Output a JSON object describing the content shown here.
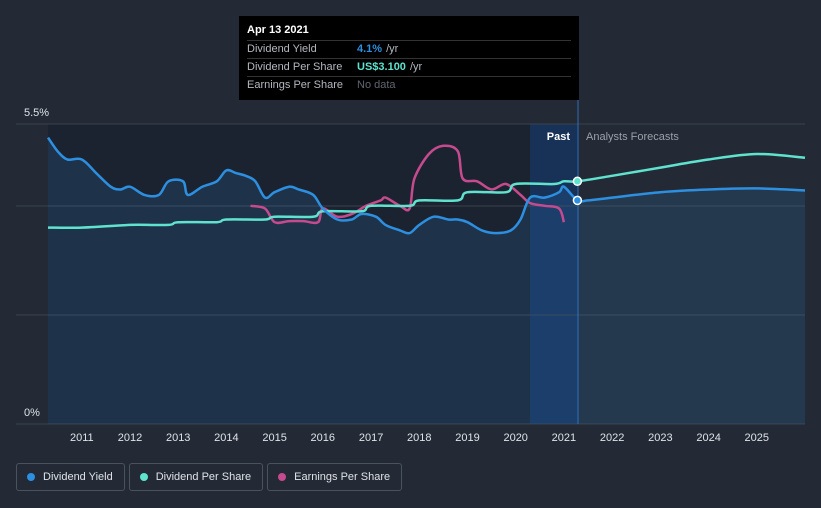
{
  "chart_data": {
    "type": "line",
    "y_axis": {
      "min_label": "0%",
      "max_label": "5.5%"
    },
    "x_ticks": [
      "2011",
      "2012",
      "2013",
      "2014",
      "2015",
      "2016",
      "2017",
      "2018",
      "2019",
      "2020",
      "2021",
      "2022",
      "2023",
      "2024",
      "2025"
    ],
    "region_labels": {
      "past": "Past",
      "forecast": "Analysts Forecasts"
    },
    "series": [
      {
        "name": "Dividend Yield",
        "color": "#2d8fe0",
        "points": [
          [
            2010.3,
            5.25
          ],
          [
            2010.5,
            5.0
          ],
          [
            2010.7,
            4.85
          ],
          [
            2011.0,
            4.85
          ],
          [
            2011.3,
            4.6
          ],
          [
            2011.6,
            4.35
          ],
          [
            2011.8,
            4.3
          ],
          [
            2012.0,
            4.35
          ],
          [
            2012.3,
            4.2
          ],
          [
            2012.6,
            4.2
          ],
          [
            2012.8,
            4.45
          ],
          [
            2013.1,
            4.45
          ],
          [
            2013.2,
            4.2
          ],
          [
            2013.5,
            4.35
          ],
          [
            2013.8,
            4.45
          ],
          [
            2014.0,
            4.65
          ],
          [
            2014.2,
            4.6
          ],
          [
            2014.4,
            4.55
          ],
          [
            2014.6,
            4.45
          ],
          [
            2014.8,
            4.15
          ],
          [
            2015.0,
            4.25
          ],
          [
            2015.3,
            4.35
          ],
          [
            2015.5,
            4.3
          ],
          [
            2015.8,
            4.2
          ],
          [
            2016.0,
            3.95
          ],
          [
            2016.3,
            3.75
          ],
          [
            2016.6,
            3.75
          ],
          [
            2016.8,
            3.85
          ],
          [
            2017.1,
            3.8
          ],
          [
            2017.3,
            3.65
          ],
          [
            2017.6,
            3.55
          ],
          [
            2017.8,
            3.5
          ],
          [
            2018.0,
            3.65
          ],
          [
            2018.3,
            3.8
          ],
          [
            2018.6,
            3.75
          ],
          [
            2018.8,
            3.75
          ],
          [
            2019.0,
            3.7
          ],
          [
            2019.3,
            3.55
          ],
          [
            2019.6,
            3.5
          ],
          [
            2019.9,
            3.55
          ],
          [
            2020.1,
            3.75
          ],
          [
            2020.3,
            4.15
          ],
          [
            2020.6,
            4.15
          ],
          [
            2020.9,
            4.25
          ],
          [
            2021.0,
            4.35
          ],
          [
            2021.28,
            4.1
          ],
          [
            2021.5,
            4.1
          ],
          [
            2022.0,
            4.15
          ],
          [
            2023.0,
            4.25
          ],
          [
            2024.0,
            4.3
          ],
          [
            2025.0,
            4.32
          ],
          [
            2026.0,
            4.28
          ]
        ]
      },
      {
        "name": "Dividend Per Share",
        "color": "#5fe3cf",
        "points": [
          [
            2010.3,
            3.6
          ],
          [
            2011.0,
            3.6
          ],
          [
            2012.0,
            3.65
          ],
          [
            2012.8,
            3.65
          ],
          [
            2013.0,
            3.7
          ],
          [
            2013.8,
            3.7
          ],
          [
            2014.0,
            3.75
          ],
          [
            2014.8,
            3.75
          ],
          [
            2015.0,
            3.8
          ],
          [
            2015.8,
            3.8
          ],
          [
            2016.0,
            3.9
          ],
          [
            2016.8,
            3.9
          ],
          [
            2017.0,
            4.0
          ],
          [
            2017.8,
            4.0
          ],
          [
            2018.0,
            4.1
          ],
          [
            2018.8,
            4.1
          ],
          [
            2019.0,
            4.25
          ],
          [
            2019.8,
            4.25
          ],
          [
            2020.0,
            4.4
          ],
          [
            2020.8,
            4.4
          ],
          [
            2021.0,
            4.45
          ],
          [
            2021.28,
            4.45
          ],
          [
            2022.0,
            4.55
          ],
          [
            2023.0,
            4.7
          ],
          [
            2024.0,
            4.85
          ],
          [
            2025.0,
            4.95
          ],
          [
            2026.0,
            4.88
          ]
        ]
      },
      {
        "name": "Earnings Per Share",
        "color": "#c64a8e",
        "points": [
          [
            2014.5,
            4.0
          ],
          [
            2014.8,
            3.95
          ],
          [
            2015.0,
            3.7
          ],
          [
            2015.3,
            3.72
          ],
          [
            2015.6,
            3.72
          ],
          [
            2015.9,
            3.7
          ],
          [
            2016.0,
            3.95
          ],
          [
            2016.3,
            3.8
          ],
          [
            2016.6,
            3.85
          ],
          [
            2016.9,
            4.0
          ],
          [
            2017.2,
            4.1
          ],
          [
            2017.3,
            4.15
          ],
          [
            2017.6,
            4.0
          ],
          [
            2017.8,
            3.95
          ],
          [
            2017.9,
            4.5
          ],
          [
            2018.2,
            4.95
          ],
          [
            2018.5,
            5.1
          ],
          [
            2018.8,
            5.0
          ],
          [
            2018.9,
            4.5
          ],
          [
            2019.2,
            4.45
          ],
          [
            2019.5,
            4.3
          ],
          [
            2019.8,
            4.4
          ],
          [
            2020.1,
            4.2
          ],
          [
            2020.3,
            4.05
          ],
          [
            2020.6,
            4.0
          ],
          [
            2020.9,
            3.95
          ],
          [
            2021.0,
            3.7
          ]
        ]
      }
    ],
    "markers": [
      {
        "series": "Dividend Per Share",
        "x": 2021.28,
        "y": 4.45
      },
      {
        "series": "Dividend Yield",
        "x": 2021.28,
        "y": 4.1
      }
    ],
    "grid": true,
    "legend_position": "bottom-left"
  },
  "tooltip": {
    "date": "Apr 13 2021",
    "rows": [
      {
        "name": "Dividend Yield",
        "value": "4.1%",
        "unit": "/yr",
        "color": "#2d8fe0"
      },
      {
        "name": "Dividend Per Share",
        "value": "US$3.100",
        "unit": "/yr",
        "color": "#5fe3cf"
      },
      {
        "name": "Earnings Per Share",
        "value": "",
        "unit": "",
        "nodata": "No data"
      }
    ]
  },
  "legend": [
    {
      "label": "Dividend Yield",
      "color": "#2d8fe0"
    },
    {
      "label": "Dividend Per Share",
      "color": "#5fe3cf"
    },
    {
      "label": "Earnings Per Share",
      "color": "#c64a8e"
    }
  ]
}
